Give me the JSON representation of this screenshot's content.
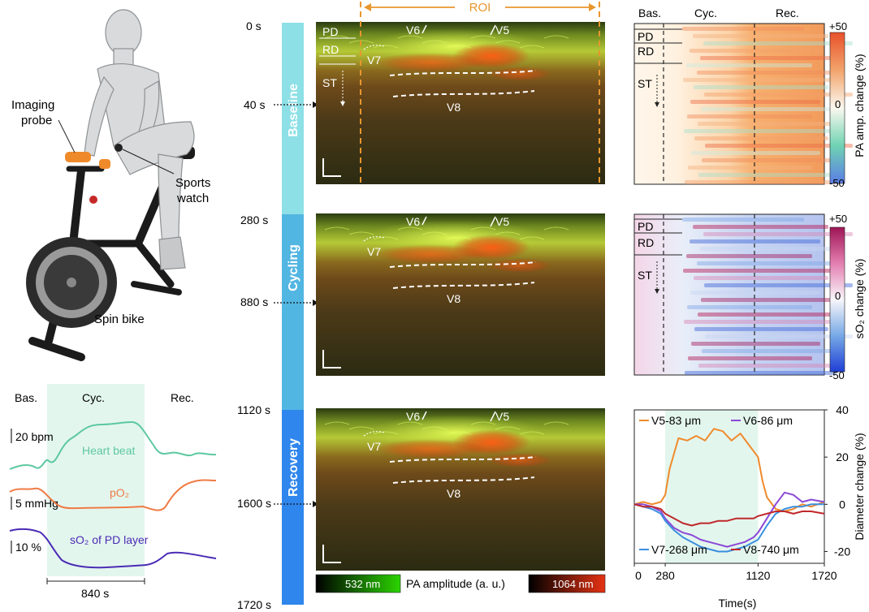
{
  "rider": {
    "probe_label_line1": "Imaging",
    "probe_label_line2": "probe",
    "watch_label_line1": "Sports",
    "watch_label_line2": "watch",
    "bike_label": "Spin bike"
  },
  "vitals": {
    "phases": [
      "Bas.",
      "Cyc.",
      "Rec."
    ],
    "hr_scale": "20 bpm",
    "hr_label": "Heart beat",
    "po2_scale": "5 mmHg",
    "po2_label": "pO₂",
    "so2_scale": "10 %",
    "so2_label": "sO₂ of PD layer",
    "duration_label": "840 s",
    "colors": {
      "hr": "#5cc8a0",
      "po2": "#ef7b45",
      "so2": "#4b2bb5",
      "shade": "#e3f6ee"
    }
  },
  "timeline": {
    "ticks": [
      "0 s",
      "40 s",
      "280 s",
      "880 s",
      "1120 s",
      "1600 s",
      "1720 s"
    ],
    "phases": [
      "Baseline",
      "Cycling",
      "Recovery"
    ],
    "colors": [
      "#8de0e6",
      "#52b6e2",
      "#2f86ec"
    ]
  },
  "pa_images": {
    "roi_label": "ROI",
    "roi_color": "#e8962e",
    "frames": [
      {
        "vessels": [
          "V6",
          "V5",
          "V7",
          "V8"
        ],
        "layers": [
          "PD",
          "RD",
          "ST"
        ]
      },
      {
        "vessels": [
          "V6",
          "V5",
          "V7",
          "V8"
        ]
      },
      {
        "vessels": [
          "V6",
          "V5",
          "V7",
          "V8"
        ]
      }
    ],
    "colorbar": {
      "left": "532 nm",
      "middle": "PA amplitude (a. u.)",
      "right": "1064 nm"
    }
  },
  "heatmap_pa": {
    "phases": [
      "Bas.",
      "Cyc.",
      "Rec."
    ],
    "layers": [
      "PD",
      "RD",
      "ST"
    ],
    "scale_max": "+50",
    "scale_zero": "0",
    "scale_min": "-50",
    "axis_label": "PA  amp. change (%)"
  },
  "heatmap_so2": {
    "layers": [
      "PD",
      "RD",
      "ST"
    ],
    "scale_max": "+50",
    "scale_zero": "0",
    "scale_min": "-50",
    "axis_label": "sO₂ change (%)"
  },
  "chart_data": {
    "type": "line",
    "xlabel": "Time(s)",
    "ylabel": "Diameter change (%)",
    "xlim": [
      0,
      1720
    ],
    "ylim": [
      -25,
      40
    ],
    "xticks": [
      "0",
      "280",
      "1120",
      "1720"
    ],
    "yticks": [
      "40",
      "20",
      "0",
      "-20"
    ],
    "shaded_region": [
      280,
      1120
    ],
    "series": [
      {
        "name": "V5-83 μm",
        "color": "#ef8a2b",
        "x": [
          0,
          80,
          160,
          240,
          280,
          320,
          400,
          480,
          560,
          640,
          720,
          800,
          880,
          960,
          1040,
          1120,
          1160,
          1200,
          1280,
          1360,
          1440,
          1520,
          1600,
          1720
        ],
        "y": [
          0,
          1,
          0,
          1,
          4,
          15,
          28,
          27,
          29,
          27,
          32,
          31,
          27,
          30,
          25,
          20,
          10,
          3,
          -2,
          -3,
          -2,
          0,
          -1,
          1
        ]
      },
      {
        "name": "V6-86 μm",
        "color": "#8b49d6",
        "x": [
          0,
          80,
          160,
          240,
          280,
          360,
          440,
          520,
          600,
          680,
          760,
          840,
          920,
          1000,
          1080,
          1120,
          1200,
          1280,
          1360,
          1440,
          1520,
          1600,
          1720
        ],
        "y": [
          0,
          0,
          -1,
          -3,
          -6,
          -10,
          -12,
          -13,
          -15,
          -16,
          -17,
          -18,
          -17,
          -16,
          -14,
          -12,
          -6,
          0,
          5,
          4,
          1,
          2,
          1
        ]
      },
      {
        "name": "V7-268 μm",
        "color": "#3b8fe0",
        "x": [
          0,
          80,
          160,
          240,
          280,
          360,
          440,
          520,
          600,
          680,
          760,
          840,
          920,
          1000,
          1080,
          1120,
          1200,
          1280,
          1360,
          1440,
          1520,
          1600,
          1720
        ],
        "y": [
          0,
          -1,
          -2,
          -4,
          -7,
          -11,
          -14,
          -16,
          -18,
          -19,
          -20,
          -20,
          -19,
          -18,
          -16,
          -15,
          -9,
          -4,
          -2,
          -1,
          -1,
          0,
          0
        ]
      },
      {
        "name": "V8-740 μm",
        "color": "#c0282b",
        "x": [
          0,
          80,
          160,
          240,
          280,
          360,
          440,
          520,
          600,
          680,
          760,
          840,
          920,
          1000,
          1080,
          1120,
          1200,
          1280,
          1360,
          1440,
          1520,
          1600,
          1720
        ],
        "y": [
          0,
          -1,
          -1,
          -2,
          -4,
          -6,
          -8,
          -9,
          -8,
          -8,
          -7,
          -7,
          -6,
          -6,
          -6,
          -5,
          -4,
          -3,
          -3,
          -4,
          -3,
          -3,
          -4
        ]
      }
    ]
  }
}
